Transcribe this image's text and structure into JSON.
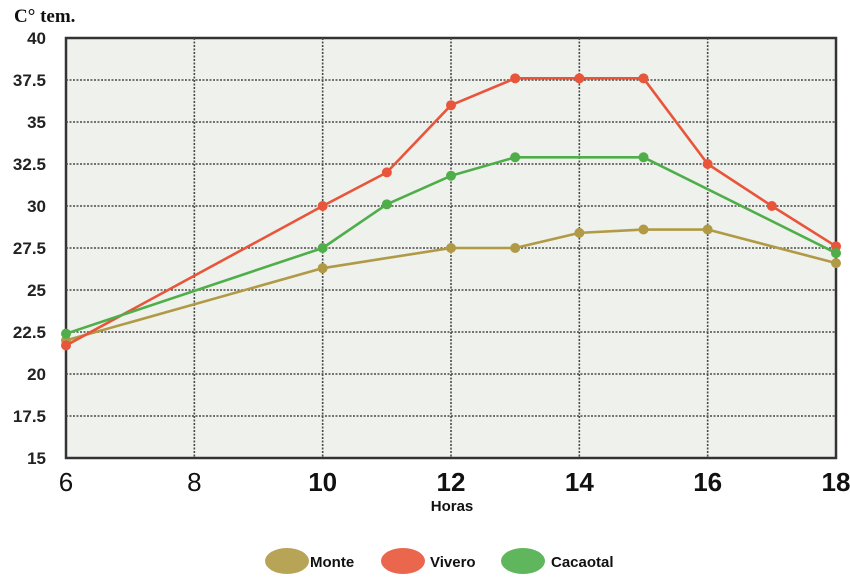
{
  "chart_data": {
    "type": "line",
    "ylabel": "C° tem.",
    "xlabel": "Horas",
    "x_ticks": [
      "6",
      "8",
      "10",
      "12",
      "14",
      "16",
      "18"
    ],
    "y_ticks": [
      "15",
      "17.5",
      "20",
      "22.5",
      "25",
      "27.5",
      "30",
      "32.5",
      "35",
      "37.5",
      "40"
    ],
    "xlim": [
      6,
      18
    ],
    "ylim": [
      15,
      40
    ],
    "grid": true,
    "legend_position": "bottom",
    "series": [
      {
        "name": "Monte",
        "color": "#b09a45",
        "x": [
          6,
          10,
          12,
          13,
          14,
          15,
          16,
          18
        ],
        "y": [
          22.0,
          26.3,
          27.5,
          27.5,
          28.4,
          28.6,
          28.6,
          26.6
        ]
      },
      {
        "name": "Vivero",
        "color": "#e8553a",
        "x": [
          6,
          10,
          11,
          12,
          13,
          14,
          15,
          16,
          17,
          18
        ],
        "y": [
          21.7,
          30.0,
          32.0,
          36.0,
          37.6,
          37.6,
          37.6,
          32.5,
          30.0,
          27.6
        ]
      },
      {
        "name": "Cacaotal",
        "color": "#4fae4a",
        "x": [
          6,
          10,
          11,
          12,
          13,
          15,
          18
        ],
        "y": [
          22.4,
          27.5,
          30.1,
          31.8,
          32.9,
          32.9,
          27.2
        ]
      }
    ]
  }
}
